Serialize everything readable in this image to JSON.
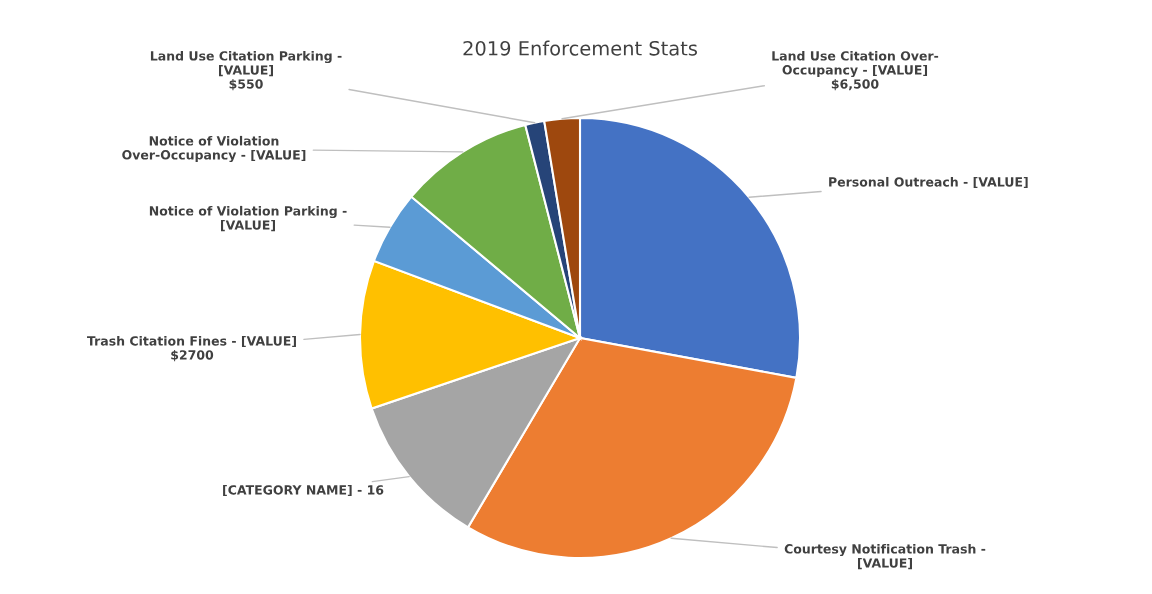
{
  "chart_data": {
    "type": "pie",
    "title": "2019 Enforcement Stats",
    "categories": [
      "Personal Outreach - [VALUE]",
      "Courtesy Notification Trash -\n[VALUE]",
      "[CATEGORY NAME] - 16",
      "Trash Citation Fines - [VALUE]\n$2700",
      "Notice of Violation Parking -\n[VALUE]",
      "Notice of Violation\nOver-Occupancy - [VALUE]",
      "Land Use Citation Parking -\n[VALUE]\n$550",
      "Land Use Citation Over-\nOccupancy - [VALUE]\n$6,500"
    ],
    "values": [
      27.9,
      30.6,
      11.3,
      10.9,
      5.4,
      9.9,
      1.4,
      2.6
    ],
    "colors": [
      "#4472c4",
      "#ed7d31",
      "#a5a5a5",
      "#ffc000",
      "#5b9bd5",
      "#70ad47",
      "#264478",
      "#9e480e"
    ],
    "legend": false
  }
}
